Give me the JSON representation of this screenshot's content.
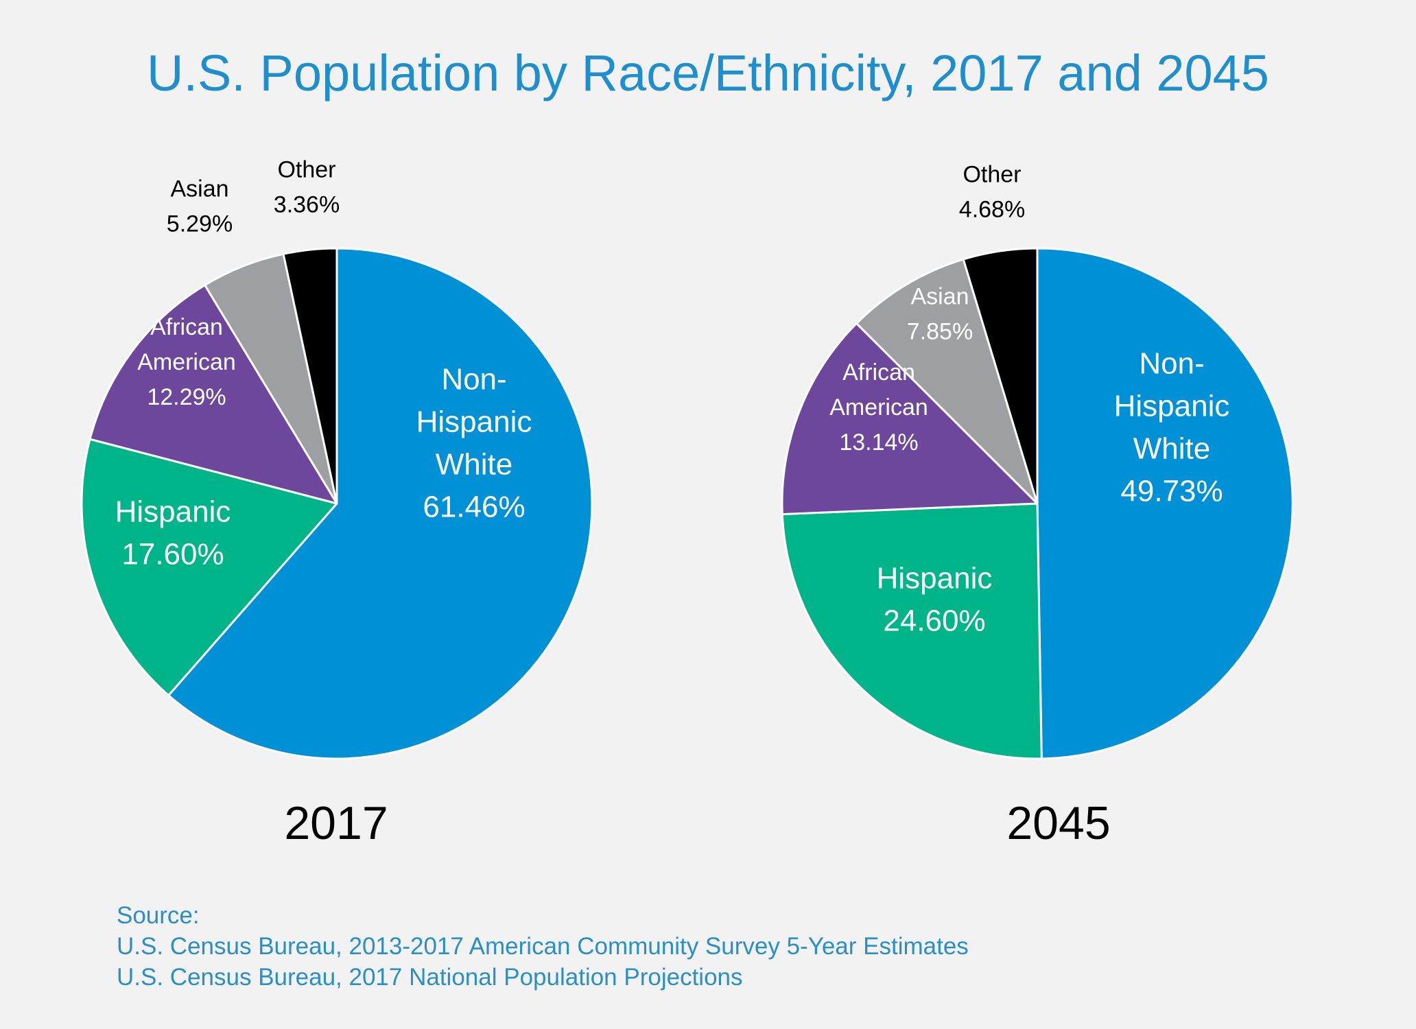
{
  "title": "U.S. Population by Race/Ethnicity, 2017 and 2045",
  "source": {
    "heading": "Source:",
    "lines": [
      "U.S. Census Bureau, 2013-2017 American Community Survey 5-Year Estimates",
      "U.S. Census Bureau, 2017 National Population Projections"
    ]
  },
  "colors": {
    "non_hispanic_white": "#0090d5",
    "hispanic": "#00b48a",
    "african_american": "#6d479b",
    "asian": "#9d9fa2",
    "other": "#000000",
    "title": "#1e8fcc",
    "background": "#f2f2f2"
  },
  "chart_data": [
    {
      "type": "pie",
      "title": "2017",
      "slices": [
        {
          "key": "non_hispanic_white",
          "label_lines": [
            "Non-",
            "Hispanic",
            "White"
          ],
          "value": 61.46,
          "value_text": "61.46%"
        },
        {
          "key": "hispanic",
          "label_lines": [
            "Hispanic"
          ],
          "value": 17.6,
          "value_text": "17.60%"
        },
        {
          "key": "african_american",
          "label_lines": [
            "African",
            "American"
          ],
          "value": 12.29,
          "value_text": "12.29%"
        },
        {
          "key": "asian",
          "label_lines": [
            "Asian"
          ],
          "value": 5.29,
          "value_text": "5.29%"
        },
        {
          "key": "other",
          "label_lines": [
            "Other"
          ],
          "value": 3.36,
          "value_text": "3.36%"
        }
      ]
    },
    {
      "type": "pie",
      "title": "2045",
      "slices": [
        {
          "key": "non_hispanic_white",
          "label_lines": [
            "Non-",
            "Hispanic",
            "White"
          ],
          "value": 49.73,
          "value_text": "49.73%"
        },
        {
          "key": "hispanic",
          "label_lines": [
            "Hispanic"
          ],
          "value": 24.6,
          "value_text": "24.60%"
        },
        {
          "key": "african_american",
          "label_lines": [
            "African",
            "American"
          ],
          "value": 13.14,
          "value_text": "13.14%"
        },
        {
          "key": "asian",
          "label_lines": [
            "Asian"
          ],
          "value": 7.85,
          "value_text": "7.85%"
        },
        {
          "key": "other",
          "label_lines": [
            "Other"
          ],
          "value": 4.68,
          "value_text": "4.68%"
        }
      ]
    }
  ]
}
